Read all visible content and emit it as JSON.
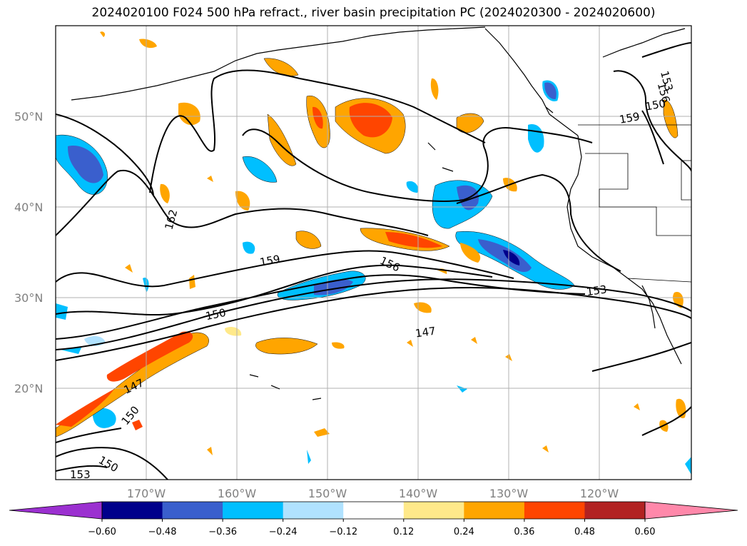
{
  "title": "2024020100 F024 500 hPa refract., river basin precipitation PC (2024020300 - 2024020600)",
  "map": {
    "lat_labels": [
      "50°N",
      "40°N",
      "30°N",
      "20°N"
    ],
    "lon_labels": [
      "170°W",
      "160°W",
      "150°W",
      "140°W",
      "130°W",
      "120°W"
    ],
    "contour_labels": [
      "162",
      "159",
      "156",
      "153",
      "150",
      "147",
      "153",
      "150",
      "147",
      "150",
      "153",
      "150",
      "156",
      "159"
    ]
  },
  "colorbar": {
    "ticks": [
      "−0.60",
      "−0.48",
      "−0.36",
      "−0.24",
      "−0.12",
      "0.12",
      "0.24",
      "0.36",
      "0.48",
      "0.60"
    ],
    "colors": [
      "#9b30d0",
      "#00008b",
      "#3a5fcd",
      "#00bfff",
      "#b0e2ff",
      "#ffffff",
      "#ffe98a",
      "#ffa500",
      "#ff4500",
      "#b22222",
      "#ff88aa"
    ]
  }
}
